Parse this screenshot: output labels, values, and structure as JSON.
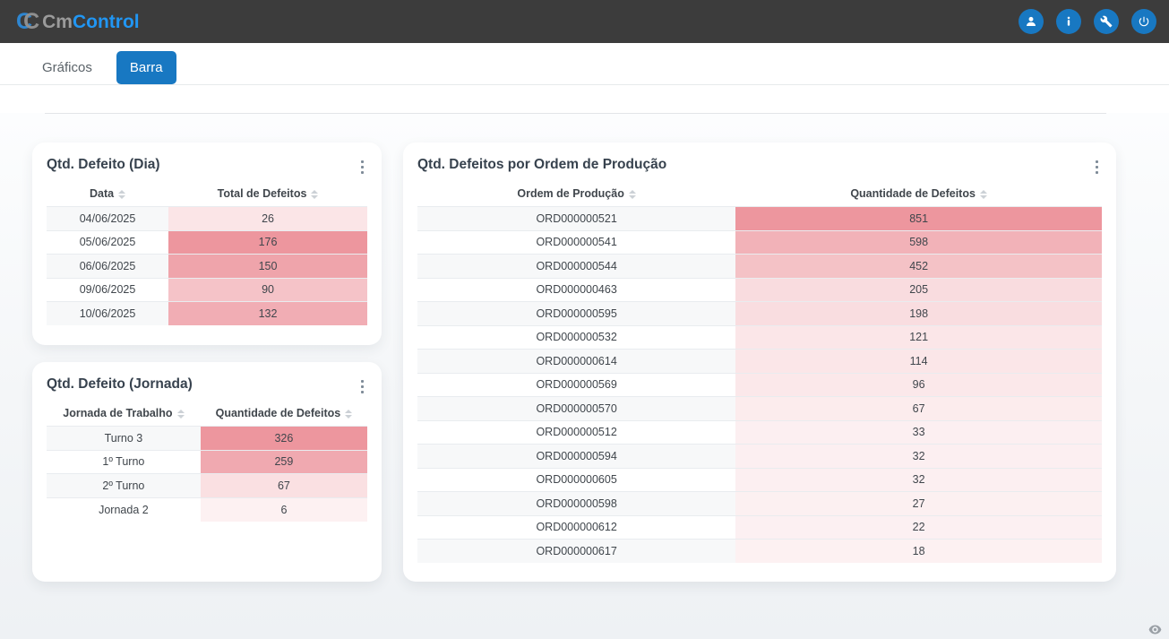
{
  "navbar": {
    "logo": {
      "mark_c1": "C",
      "mark_c2": "C",
      "brand_gray": "Cm",
      "brand_blue": "Control"
    },
    "buttons": [
      {
        "name": "user",
        "icon": "user-icon"
      },
      {
        "name": "info",
        "icon": "info-icon"
      },
      {
        "name": "tools",
        "icon": "wrench-icon"
      },
      {
        "name": "power",
        "icon": "power-icon"
      }
    ]
  },
  "tabs": [
    {
      "label": "Gráficos",
      "active": false
    },
    {
      "label": "Barra",
      "active": true
    }
  ],
  "colors": {
    "navbar_bg": "#3c3c3c",
    "accent_blue": "#1878c2",
    "brand_blue": "#2196f3",
    "heat_base": "#dc3545",
    "stripe": "#f7f8f9"
  },
  "cards": [
    {
      "title": "Qtd. Defeito (Dia)",
      "columns": [
        "Data",
        "Total de Defeitos"
      ],
      "max": 176,
      "rows": [
        [
          "04/06/2025",
          26
        ],
        [
          "05/06/2025",
          176
        ],
        [
          "06/06/2025",
          150
        ],
        [
          "09/06/2025",
          90
        ],
        [
          "10/06/2025",
          132
        ]
      ]
    },
    {
      "title": "Qtd. Defeitos por Ordem de Produção",
      "columns": [
        "Ordem de Produção",
        "Quantidade de Defeitos"
      ],
      "max": 851,
      "rows": [
        [
          "ORD000000521",
          851
        ],
        [
          "ORD000000541",
          598
        ],
        [
          "ORD000000544",
          452
        ],
        [
          "ORD000000463",
          205
        ],
        [
          "ORD000000595",
          198
        ],
        [
          "ORD000000532",
          121
        ],
        [
          "ORD000000614",
          114
        ],
        [
          "ORD000000569",
          96
        ],
        [
          "ORD000000570",
          67
        ],
        [
          "ORD000000512",
          33
        ],
        [
          "ORD000000594",
          32
        ],
        [
          "ORD000000605",
          32
        ],
        [
          "ORD000000598",
          27
        ],
        [
          "ORD000000612",
          22
        ],
        [
          "ORD000000617",
          18
        ]
      ]
    },
    {
      "title": "Qtd. Defeito (Jornada)",
      "columns": [
        "Jornada de Trabalho",
        "Quantidade de Defeitos"
      ],
      "max": 326,
      "rows": [
        [
          "Turno 3",
          326
        ],
        [
          "1º Turno",
          259
        ],
        [
          "2º Turno",
          67
        ],
        [
          "Jornada 2",
          6
        ]
      ]
    }
  ],
  "footer": {
    "eye_icon": "visibility-icon"
  }
}
